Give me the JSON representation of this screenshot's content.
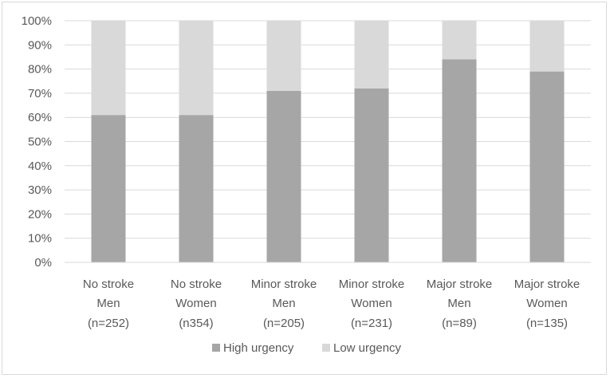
{
  "chart_data": {
    "type": "bar",
    "stacked": true,
    "categories": [
      [
        "No stroke",
        "Men",
        "(n=252)"
      ],
      [
        "No stroke",
        "Women",
        "(n354)"
      ],
      [
        "Minor stroke",
        "Men",
        "(n=205)"
      ],
      [
        "Minor stroke",
        "Women",
        "(n=231)"
      ],
      [
        "Major stroke",
        "Men",
        "(n=89)"
      ],
      [
        "Major stroke",
        "Women",
        "(n=135)"
      ]
    ],
    "series": [
      {
        "name": "High urgency",
        "color": "#a6a6a6",
        "values": [
          61,
          61,
          71,
          72,
          84,
          79
        ]
      },
      {
        "name": "Low urgency",
        "color": "#d9d9d9",
        "values": [
          39,
          39,
          29,
          28,
          16,
          21
        ]
      }
    ],
    "y_ticks": [
      "0%",
      "10%",
      "20%",
      "30%",
      "40%",
      "50%",
      "60%",
      "70%",
      "80%",
      "90%",
      "100%"
    ],
    "ylim": [
      0,
      100
    ],
    "grid": true,
    "legend_position": "bottom"
  }
}
